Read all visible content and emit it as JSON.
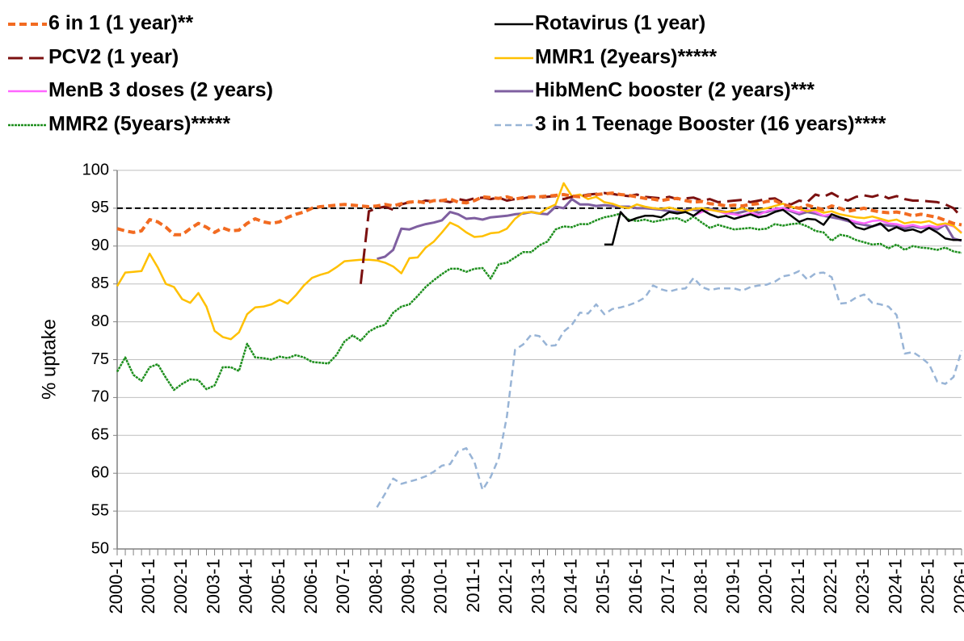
{
  "chart_data": {
    "type": "line",
    "ylabel": "% uptake",
    "ylim": [
      50,
      100
    ],
    "yticks": [
      50,
      55,
      60,
      65,
      70,
      75,
      80,
      85,
      90,
      95,
      100
    ],
    "grid": true,
    "reference_line": 95,
    "reference_line_color": "#000000",
    "categories": [
      "2000-1",
      null,
      null,
      null,
      "2001-1",
      null,
      null,
      null,
      "2002-1",
      null,
      null,
      null,
      "2003-1",
      null,
      null,
      null,
      "2004-1",
      null,
      null,
      null,
      "2005-1",
      null,
      null,
      null,
      "2006-1",
      null,
      null,
      null,
      "2007-1",
      null,
      null,
      null,
      "2008-1",
      null,
      null,
      null,
      "2009-1",
      null,
      null,
      null,
      "2010-1",
      null,
      null,
      null,
      "2011-1",
      null,
      null,
      null,
      "2012-1",
      null,
      null,
      null,
      "2013-1",
      null,
      null,
      null,
      "2014-1",
      null,
      null,
      null,
      "2015-1",
      null,
      null,
      null,
      "2016-1",
      null,
      null,
      null,
      "2017-1",
      null,
      null,
      null,
      "2018-1",
      null,
      null,
      null,
      "2019-1",
      null,
      null,
      null,
      "2020-1",
      null,
      null,
      null,
      "2021-1",
      null,
      null,
      null,
      "2022-1",
      null,
      null,
      null,
      "2023-1",
      null,
      null,
      null,
      "2024-1",
      null,
      null,
      null,
      "2025-1",
      null,
      null,
      null,
      "2026-1"
    ],
    "series": [
      {
        "name": "6 in 1 (1 year)**",
        "color": "#f26b21",
        "dash": "9 5",
        "width": 4,
        "values": [
          92.3,
          92.0,
          91.8,
          92.0,
          93.5,
          93.2,
          92.5,
          91.5,
          91.5,
          92.3,
          93.0,
          92.5,
          91.8,
          92.4,
          92.0,
          92.1,
          93.0,
          93.6,
          93.2,
          93.0,
          93.2,
          93.8,
          94.2,
          94.5,
          95.0,
          95.2,
          95.3,
          95.4,
          95.5,
          95.4,
          95.3,
          95.2,
          95.3,
          95.5,
          95.3,
          95.6,
          95.8,
          95.9,
          95.7,
          96.0,
          96.0,
          96.2,
          95.8,
          95.7,
          96.0,
          96.5,
          96.4,
          96.3,
          96.5,
          96.2,
          96.4,
          96.5,
          96.5,
          96.6,
          96.7,
          96.8,
          96.6,
          96.5,
          96.7,
          96.8,
          96.9,
          97.0,
          96.8,
          96.7,
          96.5,
          96.3,
          96.2,
          96.0,
          96.2,
          96.3,
          96.0,
          95.8,
          95.9,
          95.6,
          95.5,
          95.3,
          95.4,
          95.3,
          95.5,
          95.6,
          95.9,
          96.0,
          95.5,
          95.2,
          95.0,
          95.4,
          95.1,
          94.8,
          95.3,
          95.0,
          94.6,
          94.8,
          95.0,
          94.7,
          94.5,
          94.4,
          94.5,
          94.3,
          94.0,
          94.2,
          94.0,
          93.8,
          93.4,
          93.0,
          92.8
        ]
      },
      {
        "name": "Rotavirus (1 year)",
        "color": "#000000",
        "dash": "none",
        "width": 2.5,
        "values": [
          null,
          null,
          null,
          null,
          null,
          null,
          null,
          null,
          null,
          null,
          null,
          null,
          null,
          null,
          null,
          null,
          null,
          null,
          null,
          null,
          null,
          null,
          null,
          null,
          null,
          null,
          null,
          null,
          null,
          null,
          null,
          null,
          null,
          null,
          null,
          null,
          null,
          null,
          null,
          null,
          null,
          null,
          null,
          null,
          null,
          null,
          null,
          null,
          null,
          null,
          null,
          null,
          null,
          null,
          null,
          null,
          null,
          null,
          null,
          null,
          90.2,
          90.2,
          94.5,
          93.3,
          93.7,
          94.0,
          94.0,
          93.8,
          94.5,
          94.3,
          94.5,
          94.0,
          94.8,
          94.2,
          93.8,
          94.0,
          93.6,
          93.9,
          94.2,
          93.8,
          94.0,
          94.5,
          94.8,
          94.0,
          93.2,
          93.6,
          93.5,
          92.8,
          94.2,
          93.8,
          93.5,
          92.5,
          92.2,
          92.6,
          93.0,
          92.0,
          92.5,
          92.0,
          92.2,
          91.8,
          92.4,
          91.8,
          91.0,
          90.8,
          90.8
        ]
      },
      {
        "name": "PCV2 (1 year)",
        "color": "#7b1010",
        "dash": "18 8",
        "width": 3,
        "values": [
          null,
          null,
          null,
          null,
          null,
          null,
          null,
          null,
          null,
          null,
          null,
          null,
          null,
          null,
          null,
          null,
          null,
          null,
          null,
          null,
          null,
          null,
          null,
          null,
          null,
          null,
          null,
          null,
          null,
          null,
          85.0,
          94.6,
          95.0,
          95.2,
          94.8,
          95.5,
          95.8,
          95.7,
          96.0,
          95.9,
          96.0,
          95.8,
          96.2,
          96.0,
          96.3,
          96.4,
          96.2,
          96.4,
          96.0,
          96.2,
          96.3,
          96.5,
          96.4,
          96.5,
          96.6,
          96.2,
          96.5,
          96.6,
          96.8,
          96.9,
          97.0,
          96.9,
          96.7,
          96.6,
          96.8,
          96.5,
          96.4,
          96.3,
          96.5,
          96.2,
          96.3,
          96.4,
          96.0,
          96.2,
          95.8,
          95.9,
          96.0,
          96.1,
          95.8,
          96.0,
          96.2,
          96.3,
          95.7,
          95.5,
          96.0,
          95.8,
          96.8,
          96.5,
          97.0,
          96.4,
          96.0,
          96.5,
          96.7,
          96.5,
          96.8,
          96.3,
          96.6,
          96.2,
          96.0,
          96.0,
          95.9,
          95.8,
          95.5,
          95.0,
          93.8
        ]
      },
      {
        "name": "MMR1 (2years)*****",
        "color": "#ffc000",
        "dash": "none",
        "width": 2.5,
        "values": [
          84.7,
          86.5,
          86.6,
          86.7,
          89.0,
          87.2,
          85.0,
          84.6,
          83.0,
          82.5,
          83.8,
          82.0,
          78.8,
          78.0,
          77.7,
          78.6,
          81.0,
          81.9,
          82.0,
          82.3,
          82.9,
          82.4,
          83.5,
          84.8,
          85.8,
          86.2,
          86.5,
          87.2,
          88.0,
          88.1,
          88.2,
          88.2,
          88.1,
          87.8,
          87.3,
          86.4,
          88.4,
          88.5,
          89.8,
          90.6,
          91.8,
          93.1,
          92.6,
          91.8,
          91.2,
          91.3,
          91.7,
          91.8,
          92.3,
          93.6,
          94.4,
          94.5,
          94.3,
          95.0,
          95.5,
          98.3,
          96.6,
          96.8,
          96.2,
          96.5,
          95.8,
          95.6,
          95.2,
          95.0,
          95.5,
          95.2,
          95.0,
          94.9,
          95.1,
          94.8,
          94.6,
          94.9,
          95.0,
          94.8,
          94.6,
          94.5,
          94.7,
          95.0,
          94.6,
          94.8,
          95.0,
          95.3,
          95.6,
          95.2,
          94.9,
          94.6,
          94.8,
          94.4,
          94.6,
          94.2,
          94.0,
          93.8,
          93.7,
          93.9,
          93.6,
          93.3,
          93.5,
          93.0,
          93.2,
          93.1,
          93.3,
          92.8,
          93.0,
          92.7,
          91.7
        ]
      },
      {
        "name": "MenB 3 doses (2 years)",
        "color": "#ff66ff",
        "dash": "none",
        "width": 2.5,
        "values": [
          null,
          null,
          null,
          null,
          null,
          null,
          null,
          null,
          null,
          null,
          null,
          null,
          null,
          null,
          null,
          null,
          null,
          null,
          null,
          null,
          null,
          null,
          null,
          null,
          null,
          null,
          null,
          null,
          null,
          null,
          null,
          null,
          null,
          null,
          null,
          null,
          null,
          null,
          null,
          null,
          null,
          null,
          null,
          null,
          null,
          null,
          null,
          null,
          null,
          null,
          null,
          null,
          null,
          null,
          null,
          null,
          null,
          null,
          null,
          null,
          null,
          null,
          null,
          null,
          null,
          null,
          null,
          null,
          null,
          null,
          null,
          94.0,
          94.5,
          94.8,
          94.6,
          94.3,
          94.2,
          94.0,
          94.4,
          94.1,
          94.6,
          94.9,
          95.0,
          94.7,
          94.4,
          94.8,
          94.5,
          94.0,
          94.2,
          93.8,
          93.5,
          93.2,
          93.0,
          93.3,
          93.4,
          93.0,
          92.9,
          92.6,
          92.8,
          92.5,
          92.7,
          92.5,
          92.9,
          92.6,
          91.8
        ]
      },
      {
        "name": "HibMenC booster (2 years)***",
        "color": "#7f5fa0",
        "dash": "none",
        "width": 3,
        "values": [
          null,
          null,
          null,
          null,
          null,
          null,
          null,
          null,
          null,
          null,
          null,
          null,
          null,
          null,
          null,
          null,
          null,
          null,
          null,
          null,
          null,
          null,
          null,
          null,
          null,
          null,
          null,
          null,
          null,
          null,
          null,
          null,
          88.3,
          88.6,
          89.5,
          92.3,
          92.2,
          92.6,
          92.9,
          93.1,
          93.4,
          94.5,
          94.2,
          93.6,
          93.7,
          93.5,
          93.8,
          93.9,
          94.0,
          94.2,
          94.3,
          94.5,
          94.3,
          94.2,
          95.2,
          95.0,
          96.2,
          95.5,
          95.5,
          95.3,
          95.4,
          95.3,
          95.2,
          95.2,
          95.0,
          95.0,
          94.9,
          94.8,
          94.6,
          94.5,
          94.8,
          94.8,
          94.6,
          94.9,
          94.7,
          94.5,
          94.3,
          94.5,
          94.8,
          94.4,
          94.5,
          94.8,
          95.0,
          94.6,
          94.2,
          94.5,
          94.3,
          94.0,
          93.8,
          93.6,
          93.3,
          93.0,
          92.8,
          92.6,
          92.9,
          92.7,
          92.6,
          92.3,
          92.6,
          92.4,
          92.5,
          92.2,
          92.8,
          91.0,
          90.7
        ]
      },
      {
        "name": "MMR2 (5years)*****",
        "color": "#1e8f1e",
        "dash": "3 1",
        "width": 2.5,
        "values": [
          73.4,
          75.3,
          73.0,
          72.2,
          74.0,
          74.4,
          72.6,
          71.0,
          71.8,
          72.4,
          72.3,
          71.1,
          71.6,
          74.0,
          74.0,
          73.5,
          77.1,
          75.3,
          75.2,
          75.0,
          75.4,
          75.2,
          75.6,
          75.3,
          74.7,
          74.6,
          74.5,
          75.6,
          77.4,
          78.2,
          77.5,
          78.7,
          79.3,
          79.6,
          81.2,
          82.0,
          82.3,
          83.4,
          84.6,
          85.5,
          86.3,
          87.0,
          87.0,
          86.6,
          87.0,
          87.1,
          85.7,
          87.6,
          87.8,
          88.5,
          89.2,
          89.2,
          90.1,
          90.6,
          92.2,
          92.6,
          92.5,
          92.9,
          92.9,
          93.4,
          93.8,
          94.0,
          94.3,
          93.5,
          93.3,
          93.5,
          93.2,
          93.4,
          93.6,
          93.7,
          93.2,
          93.9,
          93.1,
          92.4,
          92.8,
          92.5,
          92.2,
          92.3,
          92.4,
          92.2,
          92.3,
          92.9,
          92.7,
          92.9,
          93.0,
          92.6,
          92.0,
          91.8,
          90.7,
          91.5,
          91.3,
          90.8,
          90.5,
          90.2,
          90.3,
          89.7,
          90.2,
          89.5,
          90.0,
          89.8,
          89.7,
          89.5,
          89.8,
          89.3,
          89.1
        ]
      },
      {
        "name": "3 in 1 Teenage Booster (16 years)****",
        "color": "#98b4d6",
        "dash": "8 5",
        "width": 2.5,
        "values": [
          null,
          null,
          null,
          null,
          null,
          null,
          null,
          null,
          null,
          null,
          null,
          null,
          null,
          null,
          null,
          null,
          null,
          null,
          null,
          null,
          null,
          null,
          null,
          null,
          null,
          null,
          null,
          null,
          null,
          null,
          null,
          null,
          55.5,
          57.3,
          59.3,
          58.6,
          58.9,
          59.2,
          59.6,
          60.2,
          61.0,
          61.2,
          62.9,
          63.3,
          61.5,
          57.8,
          59.5,
          62.0,
          67.5,
          76.3,
          77.0,
          78.3,
          78.1,
          76.8,
          76.9,
          78.7,
          79.6,
          81.2,
          81.1,
          82.3,
          81.0,
          81.7,
          81.9,
          82.2,
          82.6,
          83.2,
          84.8,
          84.3,
          84.0,
          84.3,
          84.4,
          85.8,
          84.6,
          84.2,
          84.4,
          84.4,
          84.4,
          84.1,
          84.6,
          84.8,
          84.9,
          85.3,
          86.0,
          86.2,
          86.7,
          85.6,
          86.4,
          86.5,
          85.9,
          82.4,
          82.5,
          83.2,
          83.6,
          82.5,
          82.3,
          82.0,
          80.9,
          75.8,
          76.0,
          75.3,
          74.4,
          72.1,
          71.8,
          72.7,
          76.2
        ]
      }
    ]
  }
}
